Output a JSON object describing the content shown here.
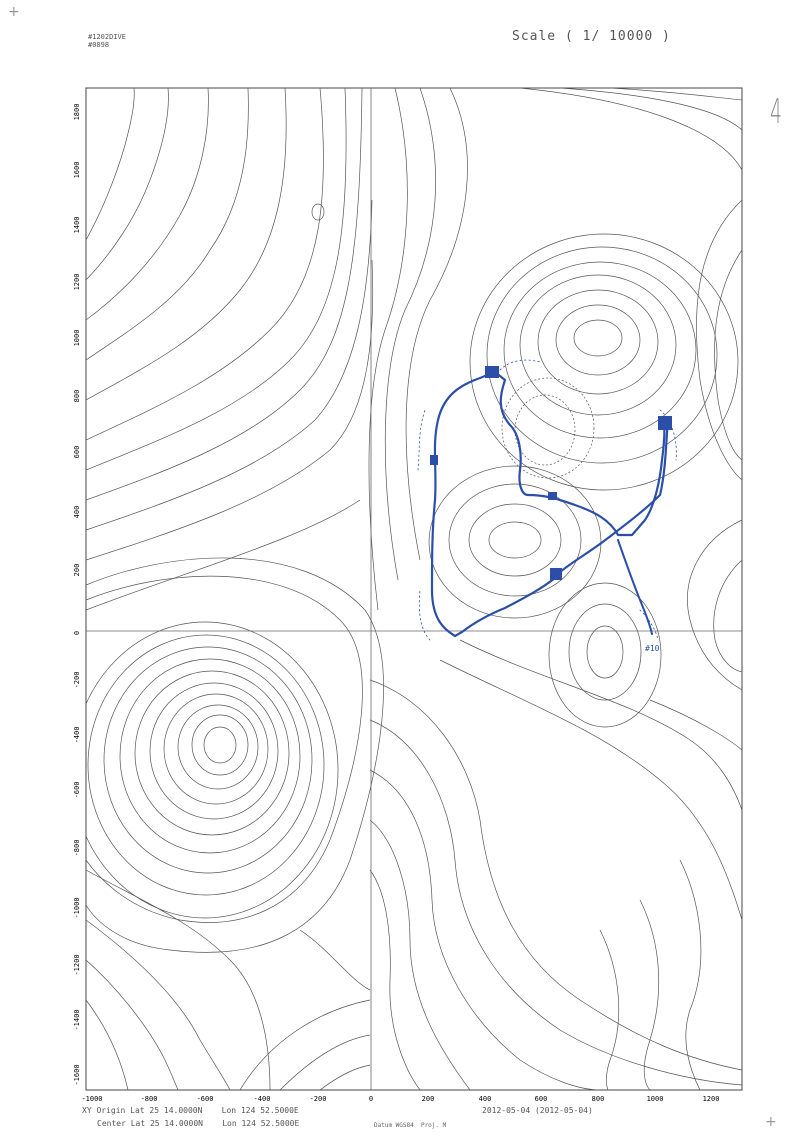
{
  "header": {
    "id_line1": "#1202DIVE",
    "id_line2": "#0898",
    "scale_label": "Scale ( 1/ 10000 )",
    "sheet_number": "4",
    "registration_mark": "+"
  },
  "axes": {
    "x_ticks": [
      "-1000",
      "-800",
      "-600",
      "-400",
      "-200",
      "0",
      "200",
      "400",
      "600",
      "800",
      "1000",
      "1200"
    ],
    "y_ticks": [
      "1800",
      "1600",
      "1400",
      "1200",
      "1000",
      "800",
      "600",
      "400",
      "200",
      "0",
      "-200",
      "-400",
      "-600",
      "-800",
      "-1000",
      "-1200",
      "-1400",
      "-1600"
    ]
  },
  "track": {
    "color": "#2b4fa8",
    "end_label": "#10"
  },
  "footer": {
    "origin_line": "XY Origin Lat 25 14.0000N    Lon 124 52.5000E",
    "center_line": "Center Lat 25 14.0000N    Lon 124 52.5000E",
    "datum": "Datum WGS84  Proj. M",
    "date": "2012-05-04 (2012-05-04)"
  }
}
